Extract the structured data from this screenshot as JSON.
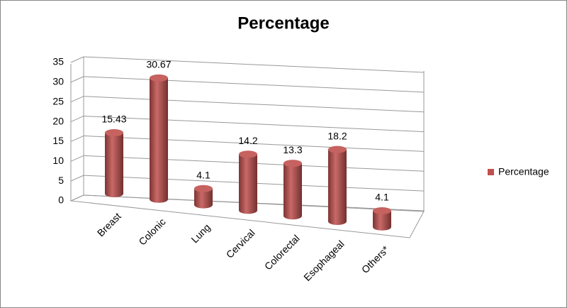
{
  "chart_data": {
    "type": "bar3d",
    "title": "Percentage",
    "categories": [
      "Breast",
      "Colonic",
      "Lung",
      "Cervical",
      "Colorectal",
      "Esophageal",
      "Others*"
    ],
    "series": [
      {
        "name": "Percentage",
        "color": "#c0504d",
        "values": [
          15.43,
          30.67,
          4.1,
          14.2,
          13.3,
          18.2,
          4.1
        ]
      }
    ],
    "ylim": [
      0,
      35
    ],
    "yticks": [
      0,
      5,
      10,
      15,
      20,
      25,
      30,
      35
    ],
    "grid": true,
    "legend": "right"
  }
}
